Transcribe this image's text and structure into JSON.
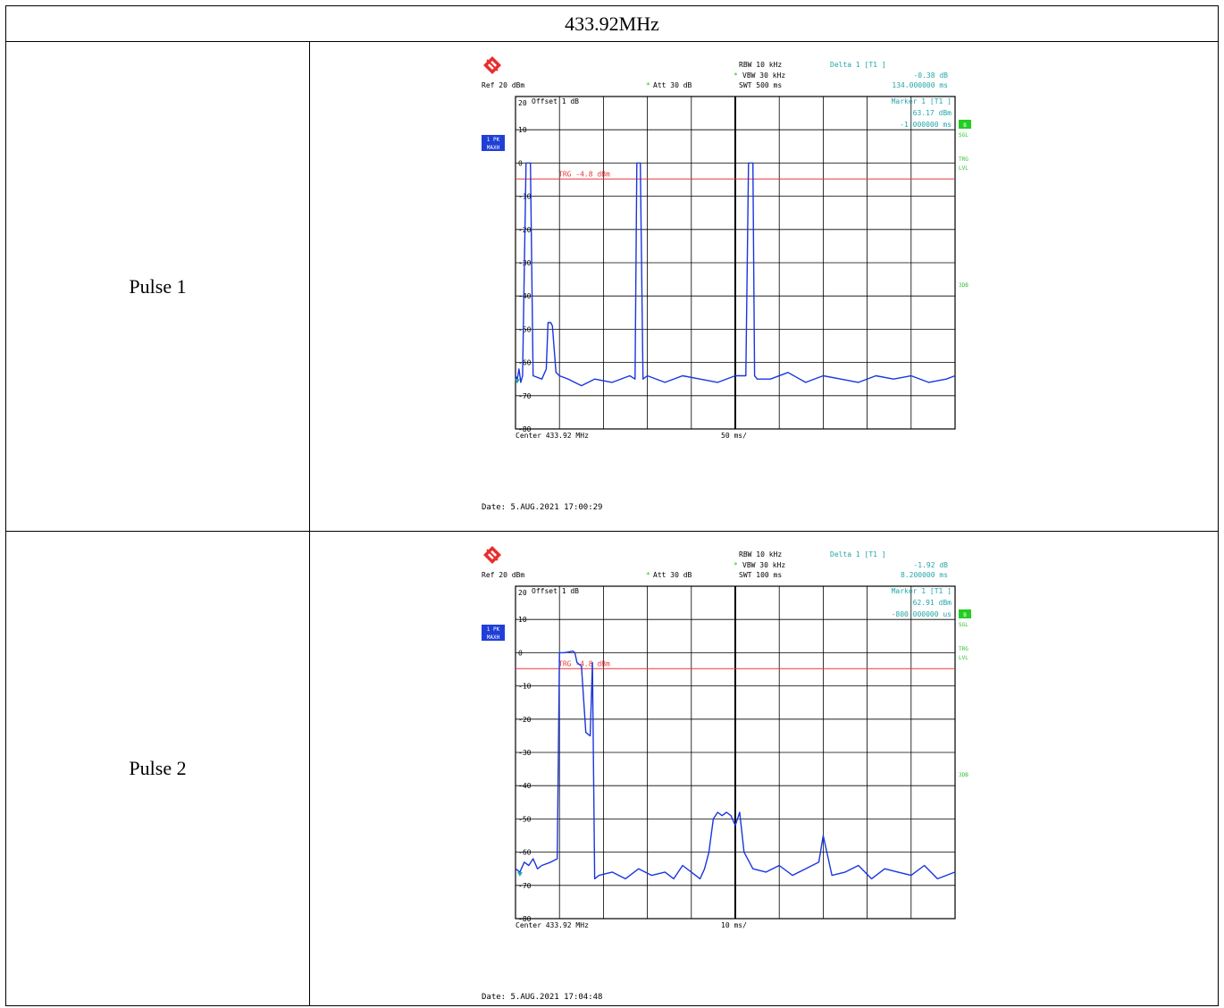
{
  "header": {
    "title": "433.92MHz"
  },
  "colors": {
    "trace": "#1a35e0",
    "info_cyan": "#23a6a8",
    "trigger_red": "#e8383a",
    "sidebar_green": "#2dc62d",
    "badge_blue": "#1f3fd8",
    "grid": "#000000",
    "badge_green": "#22cc22"
  },
  "rows": [
    {
      "label": "Pulse 1",
      "logo": "rohde-schwarz-diamond-icon",
      "info": {
        "rbw": "RBW 10 kHz",
        "vbw": "VBW 30 kHz",
        "swt": "SWT 500 ms",
        "ref": "Ref  20 dBm",
        "att": "Att  30 dB",
        "delta_label": "Delta 1 [T1 ]",
        "delta_db": "-0.38 dB",
        "delta_time": "134.000000 ms",
        "marker_label": "Marker 1 [T1 ]",
        "marker_dbm": "-63.17 dBm",
        "marker_time": "-1.000000 ms",
        "offset": "Offset  1 dB",
        "trg_label": "TRG -4.8 dBm",
        "badge_top": "1 PK",
        "badge_bottom": "MAXH",
        "side_b": "B",
        "side_sgl": "SGL",
        "side_trg": "TRG",
        "side_lvl": "LVL",
        "side_3db": "3DB",
        "center": "Center 433.92 MHz",
        "per_div": "50 ms/",
        "date": "Date: 5.AUG.2021  17:00:29"
      }
    },
    {
      "label": "Pulse 2",
      "logo": "rohde-schwarz-diamond-icon",
      "info": {
        "rbw": "RBW 10 kHz",
        "vbw": "VBW 30 kHz",
        "swt": "SWT 100 ms",
        "ref": "Ref  20 dBm",
        "att": "Att  30 dB",
        "delta_label": "Delta 1 [T1 ]",
        "delta_db": "-1.92 dB",
        "delta_time": "8.200000 ms",
        "marker_label": "Marker 1 [T1 ]",
        "marker_dbm": "-62.91 dBm",
        "marker_time": "-800.000000 us",
        "offset": "Offset  1 dB",
        "trg_label": "TRG -4.8 dBm",
        "badge_top": "1 PK",
        "badge_bottom": "MAXH",
        "side_b": "B",
        "side_sgl": "SGL",
        "side_trg": "TRG",
        "side_lvl": "LVL",
        "side_3db": "3DB",
        "center": "Center 433.92 MHz",
        "per_div": "10 ms/",
        "date": "Date: 5.AUG.2021  17:04:48"
      }
    }
  ],
  "chart_data": [
    {
      "type": "line",
      "title": "",
      "xlabel": "Center 433.92 MHz",
      "ylabel": "",
      "y_ticks": [
        20,
        10,
        0,
        -10,
        -20,
        -30,
        -40,
        -50,
        -60,
        -70,
        -80
      ],
      "ylim": [
        -80,
        20
      ],
      "xlim_ms": [
        0,
        500
      ],
      "x_div": "50 ms/",
      "trigger_level_dbm": -4.8,
      "series": [
        {
          "x": [
            0,
            2,
            4,
            6,
            8,
            12,
            17,
            20,
            30,
            35,
            37,
            40,
            42,
            46,
            50,
            60,
            75,
            90,
            110,
            130,
            136,
            138,
            140,
            142,
            145,
            150,
            170,
            190,
            210,
            230,
            250,
            262,
            265,
            268,
            270,
            272,
            275,
            290,
            310,
            330,
            350,
            370,
            390,
            410,
            430,
            450,
            470,
            490,
            500
          ],
          "y": [
            -64,
            -65,
            -62,
            -66,
            -64,
            0,
            0,
            -64,
            -65,
            -62,
            -48,
            -48,
            -49,
            -63,
            -64,
            -65,
            -67,
            -65,
            -66,
            -64,
            -65,
            0,
            0,
            0,
            -65,
            -64,
            -66,
            -64,
            -65,
            -66,
            -64,
            -64,
            0,
            0,
            0,
            -64,
            -65,
            -65,
            -63,
            -66,
            -64,
            -65,
            -66,
            -64,
            -65,
            -64,
            -66,
            -65,
            -64
          ]
        }
      ]
    },
    {
      "type": "line",
      "title": "",
      "xlabel": "Center 433.92 MHz",
      "ylabel": "",
      "y_ticks": [
        20,
        10,
        0,
        -10,
        -20,
        -30,
        -40,
        -50,
        -60,
        -70,
        -80
      ],
      "ylim": [
        -80,
        20
      ],
      "xlim_ms": [
        0,
        100
      ],
      "x_div": "10 ms/",
      "trigger_level_dbm": -4.8,
      "series": [
        {
          "x": [
            0,
            1,
            2,
            3,
            4,
            5,
            6,
            8,
            9.5,
            10,
            11,
            12,
            13,
            13.5,
            14,
            15,
            16,
            17,
            17.5,
            18,
            19,
            22,
            25,
            28,
            31,
            34,
            36,
            38,
            40,
            42,
            43,
            44,
            45,
            46,
            47,
            48,
            49,
            50,
            51,
            52,
            54,
            57,
            60,
            63,
            66,
            69,
            70,
            72,
            75,
            78,
            81,
            84,
            87,
            90,
            93,
            96,
            100
          ],
          "y": [
            -65,
            -66,
            -63,
            -64,
            -62,
            -65,
            -64,
            -63,
            -62,
            0,
            0,
            0.2,
            0.5,
            0,
            -3,
            -4,
            -24,
            -25,
            -3,
            -68,
            -67,
            -66,
            -68,
            -65,
            -67,
            -66,
            -68,
            -64,
            -66,
            -68,
            -65,
            -60,
            -50,
            -48,
            -49,
            -48,
            -49,
            -52,
            -48,
            -60,
            -65,
            -66,
            -64,
            -67,
            -65,
            -63,
            -55,
            -67,
            -66,
            -64,
            -68,
            -65,
            -66,
            -67,
            -64,
            -68,
            -66
          ]
        }
      ]
    }
  ]
}
